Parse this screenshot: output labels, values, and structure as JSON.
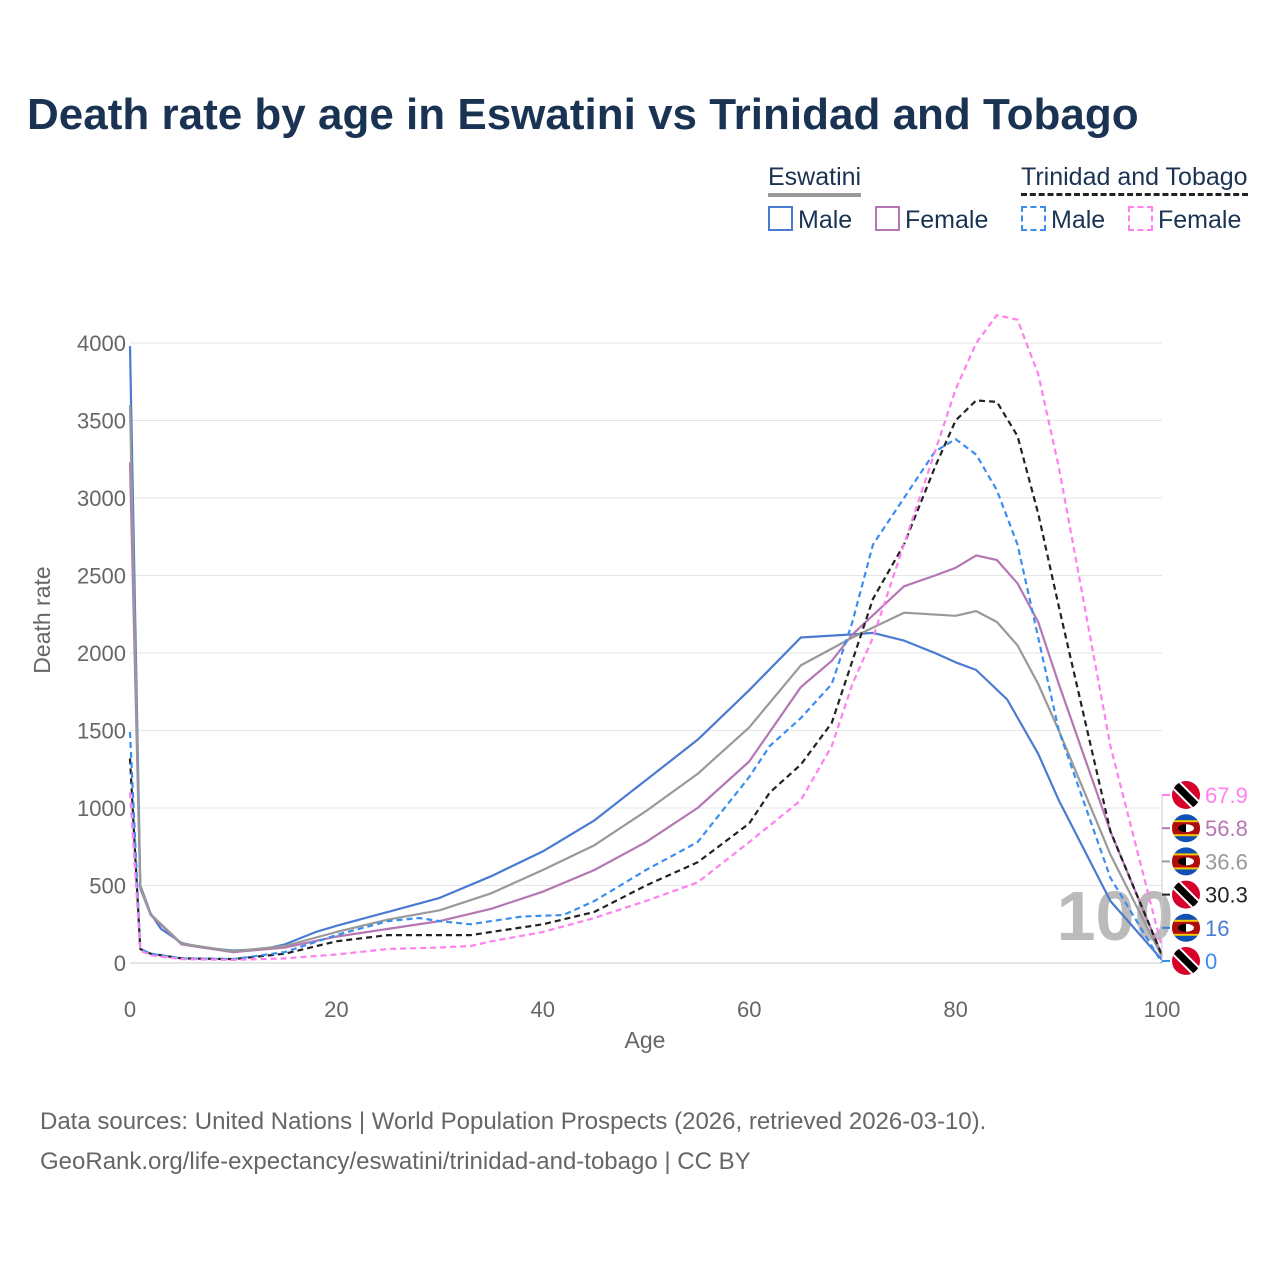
{
  "title": "Death rate by age in Eswatini vs Trinidad and Tobago",
  "legend": {
    "groups": [
      {
        "name": "Eswatini",
        "male": "Male",
        "female": "Female"
      },
      {
        "name": "Trinidad and Tobago",
        "male": "Male",
        "female": "Female"
      }
    ]
  },
  "source": {
    "line1": "Data sources: United Nations | World Population Prospects (2026, retrieved 2026-03-10).",
    "line2": "GeoRank.org/life-expectancy/eswatini/trinidad-and-tobago | CC BY"
  },
  "chart_data": {
    "type": "line",
    "xlabel": "Age",
    "ylabel": "Death rate",
    "xlim": [
      0,
      100
    ],
    "ylim": [
      0,
      4000
    ],
    "xticks": [
      0,
      20,
      40,
      60,
      80,
      100
    ],
    "yticks": [
      0,
      500,
      1000,
      1500,
      2000,
      2500,
      3000,
      3500,
      4000
    ],
    "current_age_label": "100",
    "series": [
      {
        "name": "Eswatini Male",
        "color": "#4a7bd0",
        "dash": false,
        "x": [
          0,
          1,
          2,
          3,
          5,
          7,
          10,
          13,
          15,
          18,
          20,
          25,
          30,
          35,
          40,
          45,
          50,
          55,
          60,
          65,
          70,
          72,
          75,
          78,
          80,
          82,
          85,
          88,
          90,
          95,
          100
        ],
        "y": [
          3980,
          500,
          320,
          220,
          130,
          100,
          80,
          90,
          120,
          200,
          240,
          330,
          420,
          560,
          720,
          920,
          1180,
          1440,
          1760,
          2100,
          2120,
          2130,
          2080,
          2000,
          1940,
          1890,
          1700,
          1350,
          1050,
          400,
          20
        ]
      },
      {
        "name": "Eswatini Female",
        "color": "#b477b3",
        "dash": false,
        "x": [
          0,
          1,
          2,
          5,
          10,
          15,
          20,
          25,
          30,
          35,
          40,
          45,
          50,
          55,
          60,
          65,
          68,
          70,
          75,
          78,
          80,
          82,
          84,
          86,
          88,
          90,
          95,
          100
        ],
        "y": [
          3230,
          480,
          310,
          120,
          70,
          100,
          170,
          220,
          270,
          350,
          460,
          600,
          780,
          1000,
          1300,
          1780,
          1950,
          2120,
          2430,
          2500,
          2550,
          2630,
          2600,
          2450,
          2200,
          1800,
          850,
          50
        ]
      },
      {
        "name": "Eswatini",
        "color": "#999999",
        "dash": false,
        "x": [
          0,
          1,
          2,
          5,
          10,
          15,
          20,
          25,
          30,
          35,
          40,
          45,
          50,
          55,
          60,
          65,
          70,
          75,
          80,
          82,
          84,
          86,
          88,
          90,
          95,
          100
        ],
        "y": [
          3600,
          490,
          315,
          125,
          75,
          110,
          200,
          280,
          340,
          450,
          600,
          760,
          980,
          1220,
          1520,
          1920,
          2100,
          2260,
          2240,
          2270,
          2200,
          2050,
          1800,
          1500,
          700,
          40
        ]
      },
      {
        "name": "Trinidad and Tobago",
        "color": "#222222",
        "dash": true,
        "x": [
          0,
          1,
          2,
          5,
          10,
          15,
          20,
          25,
          30,
          33,
          35,
          40,
          45,
          50,
          55,
          60,
          62,
          65,
          68,
          70,
          72,
          75,
          78,
          80,
          82,
          84,
          86,
          88,
          90,
          95,
          100
        ],
        "y": [
          1320,
          90,
          60,
          30,
          25,
          60,
          140,
          180,
          180,
          180,
          200,
          250,
          330,
          500,
          650,
          900,
          1100,
          1280,
          1550,
          1950,
          2350,
          2700,
          3200,
          3500,
          3630,
          3620,
          3400,
          2900,
          2300,
          850,
          50
        ]
      },
      {
        "name": "Trinidad and Tobago Male",
        "color": "#3b8ef0",
        "dash": true,
        "x": [
          0,
          1,
          2,
          5,
          10,
          15,
          20,
          25,
          28,
          30,
          33,
          35,
          38,
          42,
          45,
          50,
          55,
          60,
          62,
          65,
          68,
          70,
          72,
          75,
          78,
          80,
          82,
          84,
          86,
          88,
          90,
          95,
          100
        ],
        "y": [
          1490,
          90,
          60,
          30,
          25,
          70,
          180,
          270,
          290,
          270,
          250,
          270,
          300,
          310,
          400,
          600,
          780,
          1200,
          1400,
          1580,
          1800,
          2200,
          2700,
          3000,
          3300,
          3380,
          3280,
          3050,
          2700,
          2100,
          1500,
          550,
          0
        ]
      },
      {
        "name": "Trinidad and Tobago Female",
        "color": "#ff80ee",
        "dash": true,
        "x": [
          0,
          1,
          2,
          5,
          10,
          15,
          20,
          25,
          30,
          33,
          35,
          40,
          45,
          50,
          55,
          60,
          65,
          68,
          70,
          72,
          75,
          78,
          80,
          82,
          84,
          86,
          88,
          90,
          95,
          100
        ],
        "y": [
          1100,
          80,
          50,
          25,
          20,
          30,
          55,
          90,
          100,
          110,
          140,
          200,
          290,
          400,
          520,
          780,
          1050,
          1400,
          1800,
          2100,
          2700,
          3300,
          3700,
          4000,
          4180,
          4150,
          3800,
          3200,
          1400,
          100
        ]
      }
    ],
    "end_labels": [
      {
        "country": "Trinidad and Tobago",
        "value": "67.9",
        "color": "#ff80ee"
      },
      {
        "country": "Eswatini",
        "value": "56.8",
        "color": "#b477b3"
      },
      {
        "country": "Eswatini",
        "value": "36.6",
        "color": "#999999"
      },
      {
        "country": "Trinidad and Tobago",
        "value": "30.3",
        "color": "#222222"
      },
      {
        "country": "Eswatini",
        "value": "16",
        "color": "#4a7bd0"
      },
      {
        "country": "Trinidad and Tobago",
        "value": "0",
        "color": "#3b8ef0"
      }
    ]
  }
}
